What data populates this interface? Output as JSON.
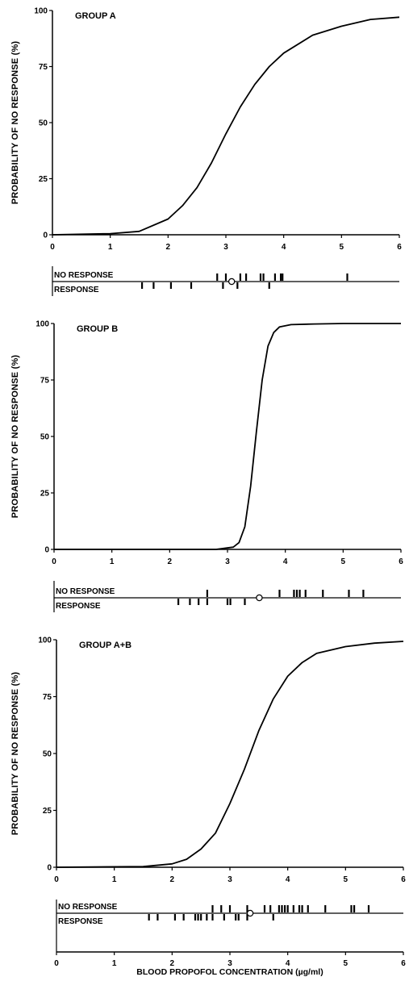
{
  "chart_data": [
    {
      "type": "line",
      "title": "GROUP A",
      "ylabel": "PROBABILITY OF NO RESPONSE (%)",
      "xlabel": "",
      "xlim": [
        0,
        6
      ],
      "ylim": [
        0,
        100
      ],
      "x_ticks": [
        "0",
        "1",
        "2",
        "3",
        "4",
        "5",
        "6"
      ],
      "y_ticks": [
        "0",
        "25",
        "50",
        "75",
        "100"
      ],
      "curve": {
        "x": [
          0,
          1.0,
          1.5,
          2.0,
          2.25,
          2.5,
          2.75,
          3.0,
          3.25,
          3.5,
          3.75,
          4.0,
          4.5,
          5.0,
          5.5,
          6.0
        ],
        "y": [
          0,
          0.5,
          1.5,
          7,
          13,
          21,
          32,
          45,
          57,
          67,
          75,
          81,
          89,
          93,
          96,
          97
        ]
      },
      "strip": {
        "no_response_label": "NO RESPONSE",
        "response_label": "RESPONSE",
        "no_response": [
          2.85,
          3.0,
          3.25,
          3.35,
          3.6,
          3.65,
          3.85,
          3.95,
          3.98,
          5.1
        ],
        "response": [
          1.55,
          1.75,
          2.05,
          2.4,
          2.95,
          3.2,
          3.75
        ],
        "marker": 3.1
      }
    },
    {
      "type": "line",
      "title": "GROUP B",
      "ylabel": "PROBABILITY OF NO RESPONSE (%)",
      "xlabel": "",
      "xlim": [
        0,
        6
      ],
      "ylim": [
        0,
        100
      ],
      "x_ticks": [
        "0",
        "1",
        "2",
        "3",
        "4",
        "5",
        "6"
      ],
      "y_ticks": [
        "0",
        "25",
        "50",
        "75",
        "100"
      ],
      "curve": {
        "x": [
          0,
          2.8,
          3.1,
          3.2,
          3.3,
          3.4,
          3.5,
          3.6,
          3.7,
          3.8,
          3.9,
          4.1,
          4.5,
          5.0,
          6.0
        ],
        "y": [
          0,
          0,
          1,
          3,
          10,
          28,
          52,
          75,
          90,
          96,
          98.5,
          99.5,
          99.8,
          100,
          100
        ]
      },
      "strip": {
        "no_response_label": "NO RESPONSE",
        "response_label": "RESPONSE",
        "no_response": [
          2.65,
          3.9,
          4.15,
          4.2,
          4.25,
          4.35,
          4.65,
          5.1,
          5.35
        ],
        "response": [
          2.15,
          2.35,
          2.5,
          2.65,
          3.0,
          3.05,
          3.3
        ],
        "marker": 3.55
      }
    },
    {
      "type": "line",
      "title": "GROUP A+B",
      "ylabel": "PROBABILITY OF NO RESPONSE (%)",
      "xlabel": "BLOOD PROPOFOL CONCENTRATION (µg/ml)",
      "xlim": [
        0,
        6
      ],
      "ylim": [
        0,
        100
      ],
      "x_ticks": [
        "0",
        "1",
        "2",
        "3",
        "4",
        "5",
        "6"
      ],
      "y_ticks": [
        "0",
        "25",
        "50",
        "75",
        "100"
      ],
      "curve": {
        "x": [
          0,
          1.5,
          2.0,
          2.25,
          2.5,
          2.75,
          3.0,
          3.25,
          3.5,
          3.75,
          4.0,
          4.25,
          4.5,
          5.0,
          5.5,
          6.0
        ],
        "y": [
          0,
          0.3,
          1.5,
          3.5,
          8,
          15,
          28,
          43,
          60,
          74,
          84,
          90,
          94,
          97,
          98.5,
          99.3
        ]
      },
      "strip": {
        "no_response_label": "NO RESPONSE",
        "response_label": "RESPONSE",
        "no_response": [
          2.7,
          2.85,
          3.0,
          3.3,
          3.6,
          3.7,
          3.85,
          3.9,
          3.95,
          4.0,
          4.1,
          4.2,
          4.25,
          4.35,
          4.65,
          5.1,
          5.15,
          5.4
        ],
        "response": [
          1.6,
          1.75,
          2.05,
          2.2,
          2.4,
          2.45,
          2.5,
          2.6,
          2.7,
          2.9,
          3.1,
          3.15,
          3.3,
          3.75
        ],
        "marker": 3.35
      }
    }
  ]
}
